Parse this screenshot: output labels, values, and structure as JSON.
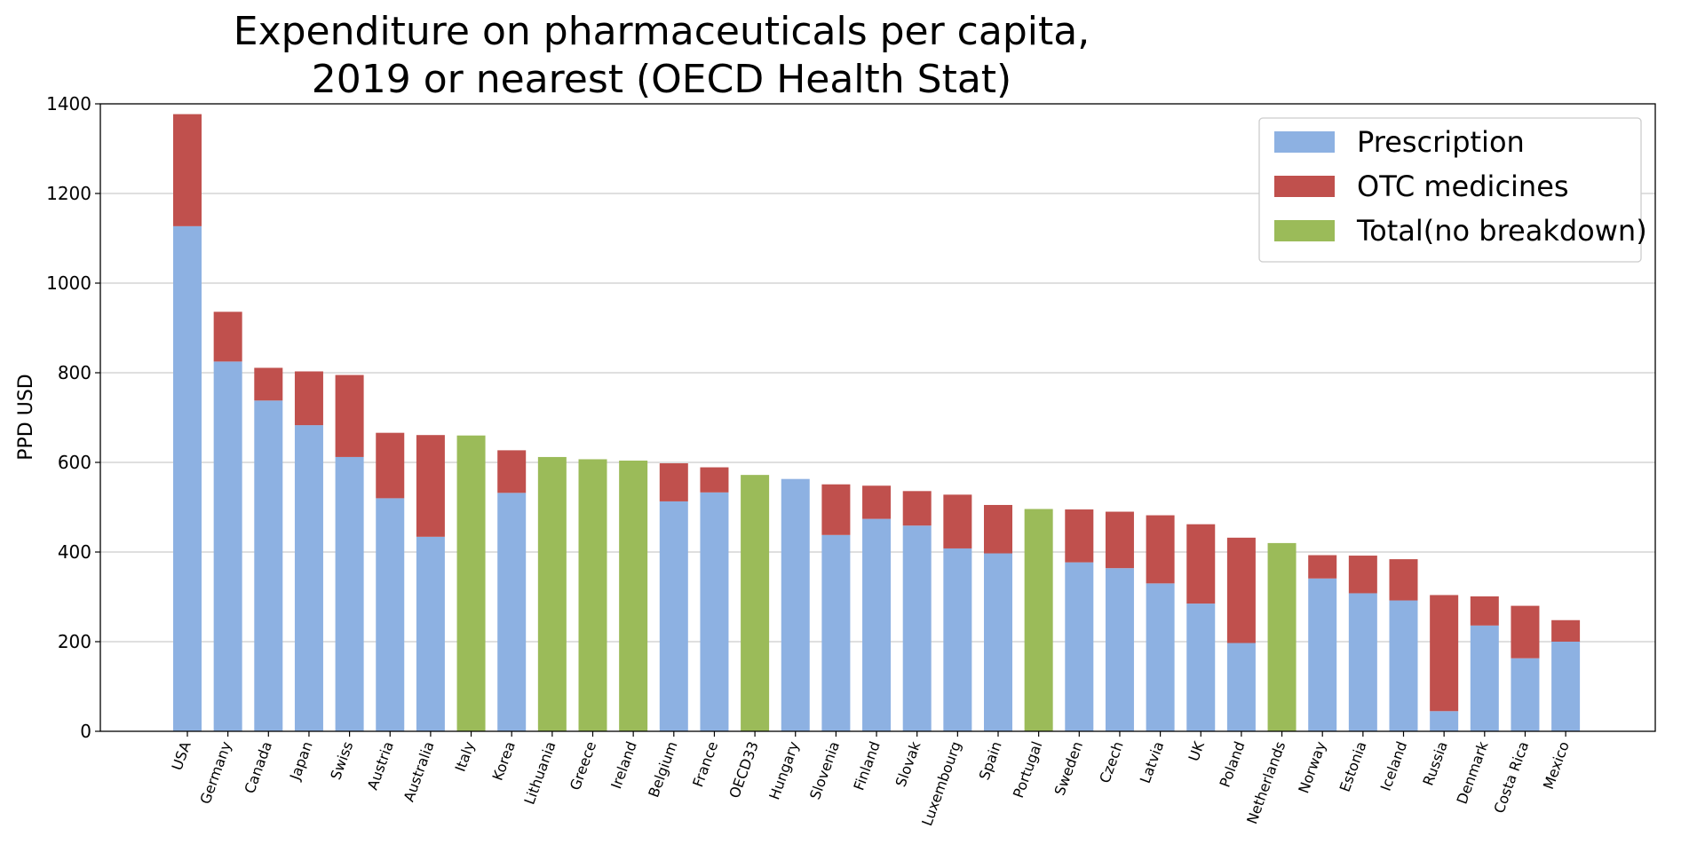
{
  "chart_data": {
    "type": "bar",
    "stacked": true,
    "title_line1": "Expenditure on pharmaceuticals per capita,",
    "title_line2": "2019 or nearest (OECD Health Stat)",
    "xlabel": "",
    "ylabel": "PPD USD",
    "ylim": [
      0,
      1400
    ],
    "yticks": [
      0,
      200,
      400,
      600,
      800,
      1000,
      1200,
      1400
    ],
    "grid": "horizontal",
    "legend_position": "top-right",
    "categories": [
      "USA",
      "Germany",
      "Canada",
      "Japan",
      "Swiss",
      "Austria",
      "Australia",
      "Italy",
      "Korea",
      "Lithuania",
      "Greece",
      "Ireland",
      "Belgium",
      "France",
      "OECD33",
      "Hungary",
      "Slovenia",
      "Finland",
      "Slovak",
      "Luxembourg",
      "Spain",
      "Portugal",
      "Sweden",
      "Czech",
      "Latvia",
      "UK",
      "Poland",
      "Netherlands",
      "Norway",
      "Estonia",
      "Iceland",
      "Russia",
      "Denmark",
      "Costa Rica",
      "Mexico"
    ],
    "series": [
      {
        "name": "Prescription",
        "color": "#8db1e2",
        "values": [
          1127,
          825,
          738,
          683,
          612,
          520,
          434,
          0,
          532,
          0,
          0,
          0,
          513,
          533,
          0,
          563,
          438,
          474,
          459,
          408,
          397,
          0,
          377,
          364,
          330,
          285,
          197,
          0,
          341,
          308,
          292,
          45,
          236,
          163,
          200
        ]
      },
      {
        "name": "OTC medicines",
        "color": "#c0504d",
        "values": [
          250,
          111,
          73,
          120,
          183,
          146,
          227,
          0,
          95,
          0,
          0,
          0,
          85,
          56,
          0,
          0,
          113,
          74,
          77,
          120,
          108,
          0,
          118,
          126,
          152,
          177,
          235,
          0,
          52,
          84,
          92,
          259,
          65,
          117,
          48
        ]
      },
      {
        "name": "Total(no breakdown)",
        "color": "#9bbb59",
        "values": [
          0,
          0,
          0,
          0,
          0,
          0,
          0,
          660,
          0,
          612,
          607,
          604,
          0,
          0,
          572,
          0,
          0,
          0,
          0,
          0,
          0,
          496,
          0,
          0,
          0,
          0,
          0,
          420,
          0,
          0,
          0,
          0,
          0,
          0,
          0
        ]
      }
    ]
  }
}
